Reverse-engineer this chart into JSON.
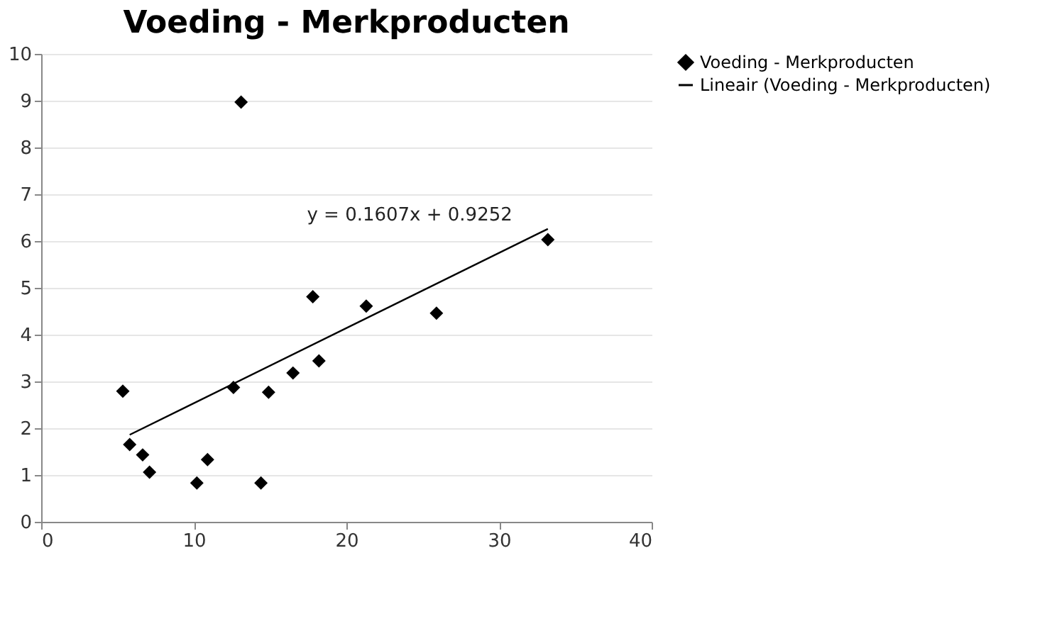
{
  "chart_data": {
    "type": "scatter",
    "title": "Voeding - Merkproducten",
    "xlim": [
      0,
      40
    ],
    "xticks": [
      0,
      10,
      20,
      30,
      40
    ],
    "ylim": [
      0,
      10
    ],
    "yticks": [
      0,
      1,
      2,
      3,
      4,
      5,
      6,
      7,
      8,
      9,
      10
    ],
    "grid": "y",
    "legend": "right",
    "annotations": [
      "y = 0.1607x + 0.9252"
    ],
    "series": [
      {
        "name": "Voeding - Merkproducten",
        "marker": "diamond",
        "color": "#000000",
        "x": [
          5.35,
          5.8,
          6.65,
          7.1,
          10.2,
          10.9,
          12.6,
          13.1,
          14.4,
          14.9,
          16.5,
          17.8,
          18.2,
          21.3,
          25.9,
          33.2
        ],
        "values": [
          2.79,
          1.65,
          1.43,
          1.06,
          0.83,
          1.33,
          2.87,
          8.97,
          0.83,
          2.77,
          3.18,
          4.81,
          3.44,
          4.61,
          4.46,
          6.03
        ]
      },
      {
        "name": "Lineair (Voeding - Merkproducten)",
        "type": "line",
        "marker": "none",
        "color": "#000000",
        "line_style": "solid",
        "x": [
          5.8,
          33.2
        ],
        "values": [
          1.86,
          6.26
        ]
      }
    ]
  }
}
